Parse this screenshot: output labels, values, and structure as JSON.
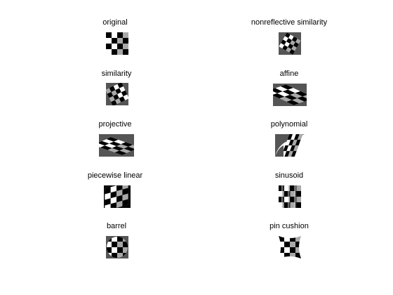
{
  "figure": {
    "background": "#ffffff",
    "checker_colors": {
      "black": "#000000",
      "white": "#ffffff",
      "gray": "#a8a8a8",
      "fill": "#555555"
    },
    "panels": [
      {
        "id": "original",
        "title": "original"
      },
      {
        "id": "nonreflective-similarity",
        "title": "nonreflective similarity"
      },
      {
        "id": "similarity",
        "title": "similarity"
      },
      {
        "id": "affine",
        "title": "affine"
      },
      {
        "id": "projective",
        "title": "projective"
      },
      {
        "id": "polynomial",
        "title": "polynomial"
      },
      {
        "id": "piecewise-linear",
        "title": "piecewise linear"
      },
      {
        "id": "sinusoid",
        "title": "sinusoid"
      },
      {
        "id": "barrel",
        "title": "barrel"
      },
      {
        "id": "pin-cushion",
        "title": "pin cushion"
      }
    ]
  }
}
